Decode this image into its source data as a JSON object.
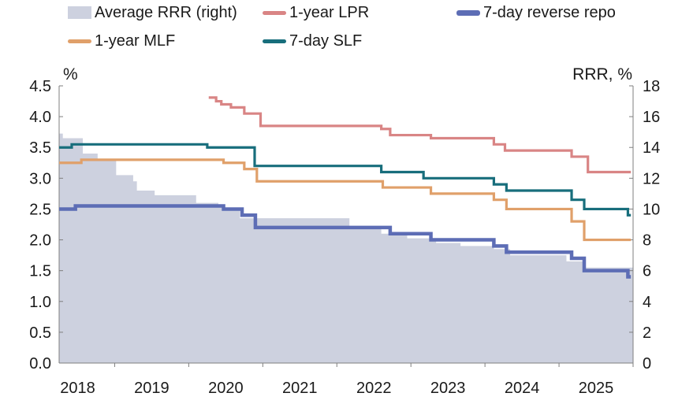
{
  "chart_data": {
    "type": "line",
    "title": "",
    "xlabel": "",
    "ylabel_left": "%",
    "ylabel_right": "RRR, %",
    "ylim_left": [
      0,
      4.5
    ],
    "ylim_right": [
      0,
      18
    ],
    "yticks_left": [
      "0.0",
      "0.5",
      "1.0",
      "1.5",
      "2.0",
      "2.5",
      "3.0",
      "3.5",
      "4.0",
      "4.5"
    ],
    "yticks_right": [
      "0",
      "2",
      "4",
      "6",
      "8",
      "10",
      "12",
      "14",
      "16",
      "18"
    ],
    "xlim": [
      2017.58,
      2025.33
    ],
    "xticks": [
      {
        "label": "2018",
        "at": 2017.83
      },
      {
        "label": "2019",
        "at": 2018.83
      },
      {
        "label": "2020",
        "at": 2019.83
      },
      {
        "label": "2021",
        "at": 2020.83
      },
      {
        "label": "2022",
        "at": 2021.83
      },
      {
        "label": "2023",
        "at": 2022.83
      },
      {
        "label": "2024",
        "at": 2023.83
      },
      {
        "label": "2025",
        "at": 2024.83
      }
    ],
    "grid": false,
    "legend_position": "top",
    "series": [
      {
        "name": "Average RRR (right)",
        "kind": "step-area",
        "axis": "right",
        "color": "#cdd1df",
        "points": [
          [
            2017.58,
            14.9
          ],
          [
            2017.63,
            14.6
          ],
          [
            2017.9,
            13.6
          ],
          [
            2018.1,
            13.2
          ],
          [
            2018.35,
            12.2
          ],
          [
            2018.58,
            11.8
          ],
          [
            2018.63,
            11.2
          ],
          [
            2018.87,
            10.9
          ],
          [
            2019.43,
            10.4
          ],
          [
            2019.73,
            10.1
          ],
          [
            2019.98,
            9.9
          ],
          [
            2020.02,
            9.4
          ],
          [
            2021.5,
            8.9
          ],
          [
            2021.93,
            8.4
          ],
          [
            2022.28,
            8.1
          ],
          [
            2022.67,
            7.8
          ],
          [
            2023.0,
            7.6
          ],
          [
            2023.45,
            7.4
          ],
          [
            2023.67,
            7.0
          ],
          [
            2024.43,
            6.6
          ],
          [
            2024.67,
            6.2
          ],
          [
            2025.26,
            6.2
          ],
          [
            2025.33,
            6.2
          ]
        ]
      },
      {
        "name": "1-year LPR",
        "kind": "step-line",
        "axis": "left",
        "color": "#d98585",
        "points": [
          [
            2019.6,
            4.31
          ],
          [
            2019.7,
            4.25
          ],
          [
            2019.77,
            4.2
          ],
          [
            2019.9,
            4.15
          ],
          [
            2020.08,
            4.05
          ],
          [
            2020.3,
            3.85
          ],
          [
            2021.93,
            3.8
          ],
          [
            2022.05,
            3.7
          ],
          [
            2022.6,
            3.65
          ],
          [
            2023.45,
            3.55
          ],
          [
            2023.6,
            3.45
          ],
          [
            2024.5,
            3.35
          ],
          [
            2024.72,
            3.1
          ],
          [
            2025.3,
            3.1
          ]
        ]
      },
      {
        "name": "7-day reverse repo",
        "kind": "step-line",
        "axis": "left",
        "color": "#5d6db5",
        "points": [
          [
            2017.58,
            2.5
          ],
          [
            2017.8,
            2.55
          ],
          [
            2019.8,
            2.5
          ],
          [
            2020.05,
            2.4
          ],
          [
            2020.23,
            2.2
          ],
          [
            2022.05,
            2.1
          ],
          [
            2022.6,
            2.0
          ],
          [
            2023.45,
            1.9
          ],
          [
            2023.62,
            1.8
          ],
          [
            2024.5,
            1.7
          ],
          [
            2024.67,
            1.5
          ],
          [
            2025.26,
            1.4
          ],
          [
            2025.3,
            1.4
          ]
        ]
      },
      {
        "name": "1-year MLF",
        "kind": "step-line",
        "axis": "left",
        "color": "#e0a06a",
        "points": [
          [
            2017.58,
            3.25
          ],
          [
            2017.88,
            3.3
          ],
          [
            2019.8,
            3.25
          ],
          [
            2020.08,
            3.15
          ],
          [
            2020.25,
            2.95
          ],
          [
            2021.95,
            2.85
          ],
          [
            2022.6,
            2.75
          ],
          [
            2023.45,
            2.65
          ],
          [
            2023.62,
            2.5
          ],
          [
            2024.5,
            2.3
          ],
          [
            2024.67,
            2.0
          ],
          [
            2025.3,
            2.0
          ]
        ]
      },
      {
        "name": "7-day SLF",
        "kind": "step-line",
        "axis": "left",
        "color": "#186e7c",
        "points": [
          [
            2017.58,
            3.5
          ],
          [
            2017.75,
            3.55
          ],
          [
            2019.58,
            3.5
          ],
          [
            2020.22,
            3.2
          ],
          [
            2021.93,
            3.1
          ],
          [
            2022.5,
            3.0
          ],
          [
            2023.45,
            2.9
          ],
          [
            2023.62,
            2.8
          ],
          [
            2024.5,
            2.65
          ],
          [
            2024.67,
            2.5
          ],
          [
            2025.26,
            2.4
          ],
          [
            2025.3,
            2.4
          ]
        ]
      }
    ]
  }
}
